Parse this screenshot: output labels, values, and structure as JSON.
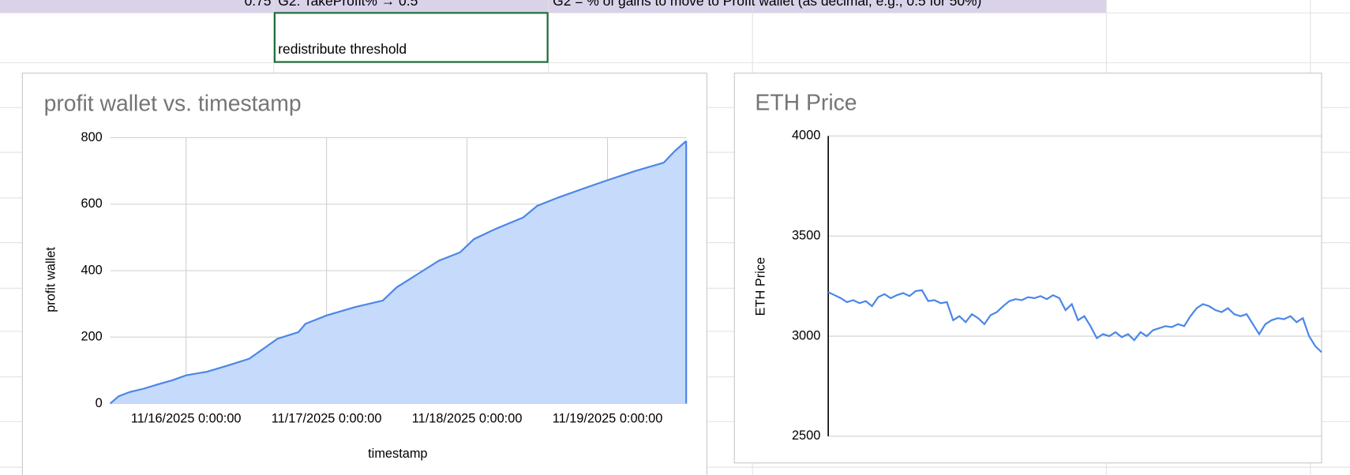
{
  "cells": {
    "top_row": [
      "0.75",
      "G2: TakeProfit% → 0.5",
      "G2 = % of gains to move to Profit wallet (as decimal, e.g., 0.5 for 50%)"
    ],
    "selected": "redistribute threshold"
  },
  "chart_data": [
    {
      "type": "area",
      "title": "profit wallet vs. timestamp",
      "x_label": "timestamp",
      "y_label": "profit wallet",
      "color": "#4a86e8",
      "fill": "#c6dafc",
      "grid": true,
      "x": [
        15.46,
        15.52,
        15.6,
        15.7,
        15.8,
        15.9,
        16.0,
        16.15,
        16.3,
        16.45,
        16.55,
        16.65,
        16.8,
        16.85,
        17.0,
        17.2,
        17.4,
        17.5,
        17.65,
        17.8,
        17.95,
        18.05,
        18.2,
        18.4,
        18.5,
        18.65,
        18.85,
        19.0,
        19.2,
        19.4,
        19.48,
        19.56
      ],
      "values": [
        0,
        22,
        35,
        45,
        58,
        70,
        85,
        96,
        115,
        135,
        165,
        195,
        215,
        240,
        265,
        290,
        310,
        350,
        390,
        430,
        455,
        495,
        525,
        560,
        595,
        620,
        650,
        672,
        700,
        725,
        760,
        790
      ],
      "xlim": [
        15.46,
        19.56
      ],
      "xticks": [
        {
          "value": 16,
          "label": "11/16/2025 0:00:00"
        },
        {
          "value": 17,
          "label": "11/17/2025 0:00:00"
        },
        {
          "value": 18,
          "label": "11/18/2025 0:00:00"
        },
        {
          "value": 19,
          "label": "11/19/2025 0:00:00"
        }
      ],
      "ylim": [
        0,
        800
      ],
      "yticks": [
        0,
        200,
        400,
        600,
        800
      ]
    },
    {
      "type": "line",
      "title": "ETH Price",
      "y_label": "ETH Price",
      "color": "#4a86e8",
      "grid": true,
      "values": [
        3220,
        3205,
        3190,
        3170,
        3180,
        3165,
        3175,
        3150,
        3195,
        3210,
        3190,
        3205,
        3215,
        3200,
        3225,
        3230,
        3175,
        3180,
        3165,
        3170,
        3080,
        3100,
        3070,
        3110,
        3090,
        3060,
        3105,
        3120,
        3150,
        3175,
        3185,
        3180,
        3195,
        3190,
        3200,
        3185,
        3205,
        3190,
        3130,
        3160,
        3080,
        3100,
        3050,
        2990,
        3010,
        3000,
        3020,
        2995,
        3010,
        2980,
        3020,
        3000,
        3030,
        3040,
        3050,
        3045,
        3060,
        3050,
        3100,
        3140,
        3160,
        3150,
        3130,
        3120,
        3140,
        3110,
        3100,
        3110,
        3060,
        3010,
        3060,
        3080,
        3090,
        3085,
        3100,
        3070,
        3090,
        3000,
        2950,
        2920
      ],
      "ylim": [
        2500,
        4000
      ],
      "yticks": [
        2500,
        3000,
        3500,
        4000
      ]
    }
  ]
}
